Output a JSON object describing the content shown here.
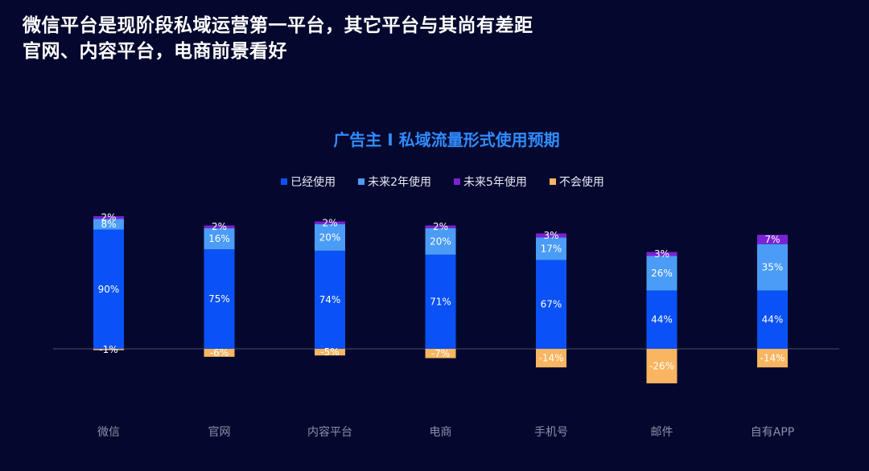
{
  "headline": {
    "line1": "微信平台是现阶段私域运营第一平台，其它平台与其尚有差距",
    "line2": "官网、内容平台，电商前景看好"
  },
  "colors": {
    "background": "#05082e",
    "series": [
      "#0a52f5",
      "#4a9cf7",
      "#7b22d6",
      "#f9b560"
    ],
    "axis": "#4a4e6a"
  },
  "chart_data": {
    "type": "bar",
    "stacked": true,
    "title": "广告主 I 私域流量形式使用预期",
    "legend_position": "top-center",
    "categories": [
      "微信",
      "官网",
      "内容平台",
      "电商",
      "手机号",
      "邮件",
      "自有APP"
    ],
    "series": [
      {
        "name": "已经使用",
        "values": [
          90,
          75,
          74,
          71,
          67,
          44,
          44
        ]
      },
      {
        "name": "未来2年使用",
        "values": [
          8,
          16,
          20,
          20,
          17,
          26,
          35
        ]
      },
      {
        "name": "未来5年使用",
        "values": [
          2,
          2,
          2,
          2,
          3,
          3,
          7
        ]
      },
      {
        "name": "不会使用",
        "values": [
          -1,
          -6,
          -5,
          -7,
          -14,
          -26,
          -14
        ]
      }
    ],
    "ylim": [
      -30,
      100
    ],
    "xlabel": "",
    "ylabel": ""
  }
}
